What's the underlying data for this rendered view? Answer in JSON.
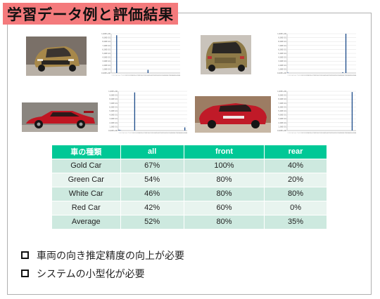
{
  "slide": {
    "title": "学習データ例と評価結果"
  },
  "images": [
    {
      "name": "gold-car-front-photo",
      "body_color": "#a7884a",
      "background": "#7a7068"
    },
    {
      "name": "gold-car-rear-photo",
      "body_color": "#8e7a48",
      "background": "#c9c3bb"
    },
    {
      "name": "red-car-side-photo",
      "body_color": "#c01622",
      "background": "#8a857f"
    },
    {
      "name": "red-car-front-photo",
      "body_color": "#c01a28",
      "background": "#9c7c63"
    }
  ],
  "chart_data": [
    {
      "type": "bar",
      "name": "histogram-1",
      "ylabels": [
        "1,00E+00",
        "9,00E-01",
        "8,00E-01",
        "7,00E-01",
        "6,00E-01",
        "5,00E-01",
        "4,00E-01",
        "3,00E-01",
        "2,00E-01",
        "1,00E-01",
        "0,00E+00"
      ],
      "ylim": [
        0,
        1
      ],
      "values": [
        0,
        0,
        0,
        0.96,
        0,
        0,
        0,
        0,
        0,
        0,
        0,
        0,
        0,
        0,
        0,
        0,
        0,
        0,
        0,
        0,
        0,
        0,
        0,
        0.08,
        0,
        0,
        0,
        0,
        0,
        0,
        0,
        0,
        0,
        0,
        0,
        0,
        0,
        0,
        0,
        0,
        0,
        0,
        0,
        0
      ]
    },
    {
      "type": "bar",
      "name": "histogram-2",
      "ylabels": [
        "1,00E+00",
        "9,00E-01",
        "8,00E-01",
        "7,00E-01",
        "6,00E-01",
        "5,00E-01",
        "4,00E-01",
        "3,00E-01",
        "2,00E-01",
        "1,00E-01",
        "0,00E+00"
      ],
      "ylim": [
        0,
        1
      ],
      "values": [
        0.01,
        0,
        0,
        0,
        0,
        0,
        0,
        0,
        0,
        0,
        0,
        0,
        0,
        0,
        0,
        0,
        0,
        0,
        0,
        0,
        0,
        0,
        0,
        0,
        0,
        0,
        0,
        0,
        0,
        0,
        0,
        0,
        0,
        0,
        0,
        0.02,
        0,
        1.0,
        0,
        0,
        0,
        0,
        0,
        0
      ]
    },
    {
      "type": "bar",
      "name": "histogram-3",
      "ylabels": [
        "1,00E+00",
        "9,00E-01",
        "8,00E-01",
        "7,00E-01",
        "6,00E-01",
        "5,00E-01",
        "4,00E-01",
        "3,00E-01",
        "2,00E-01",
        "1,00E-01",
        "0,00E+00"
      ],
      "ylim": [
        0,
        1
      ],
      "values": [
        0.02,
        0.01,
        0,
        0,
        0,
        0,
        0,
        0,
        0,
        0,
        0.97,
        0,
        0,
        0,
        0,
        0,
        0,
        0,
        0,
        0,
        0,
        0,
        0,
        0,
        0,
        0,
        0,
        0,
        0,
        0,
        0,
        0,
        0,
        0,
        0,
        0,
        0,
        0,
        0,
        0,
        0,
        0,
        0.08,
        0
      ]
    },
    {
      "type": "bar",
      "name": "histogram-4",
      "ylabels": [
        "1,00E+00",
        "9,00E-01",
        "8,00E-01",
        "7,00E-01",
        "6,00E-01",
        "5,00E-01",
        "4,00E-01",
        "3,00E-01",
        "2,00E-01",
        "1,00E-01",
        "0,00E+00"
      ],
      "ylim": [
        0,
        1
      ],
      "values": [
        0,
        0,
        0,
        0,
        0,
        0,
        0,
        0,
        0,
        0,
        0,
        0,
        0,
        0,
        0,
        0,
        0,
        0,
        0,
        0,
        0,
        0,
        0,
        0,
        0,
        0,
        0,
        0,
        0,
        0,
        0,
        0,
        0,
        0,
        0,
        0,
        0,
        0,
        0,
        0,
        0,
        0.98,
        0,
        0
      ]
    }
  ],
  "table": {
    "headers": [
      "車の種類",
      "all",
      "front",
      "rear"
    ],
    "rows": [
      [
        "Gold Car",
        "67%",
        "100%",
        "40%"
      ],
      [
        "Green Car",
        "54%",
        "80%",
        "20%"
      ],
      [
        "White Car",
        "46%",
        "80%",
        "80%"
      ],
      [
        "Red Car",
        "42%",
        "60%",
        "0%"
      ],
      [
        "Average",
        "52%",
        "80%",
        "35%"
      ]
    ]
  },
  "bullets": [
    "車両の向き推定精度の向上が必要",
    "システムの小型化が必要"
  ],
  "colors": {
    "title_bg": "#f47a7c",
    "table_header": "#00c896",
    "row_odd": "#cde9df",
    "row_even": "#e8f4ef",
    "bar": "#1f4e8c"
  }
}
